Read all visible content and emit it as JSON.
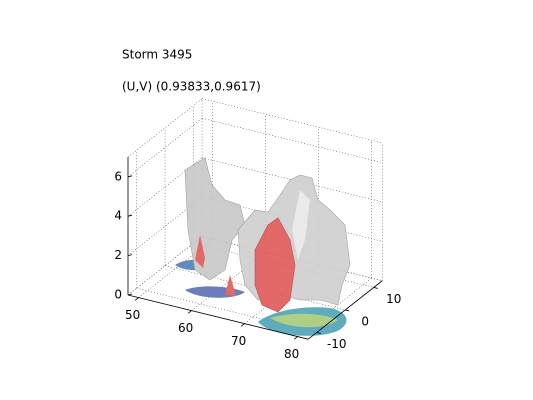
{
  "chart_data": {
    "type": "isosurface3d",
    "title": "Storm 3495",
    "subtitle": "(U,V) (0.93833,0.9617)",
    "xlim": [
      48,
      82
    ],
    "xticks": [
      50,
      60,
      70,
      80
    ],
    "ylim": [
      -13,
      13
    ],
    "yticks": [
      -10,
      0,
      10
    ],
    "zlim": [
      0,
      7
    ],
    "zticks": [
      0,
      2,
      4,
      6
    ],
    "grid": true
  }
}
